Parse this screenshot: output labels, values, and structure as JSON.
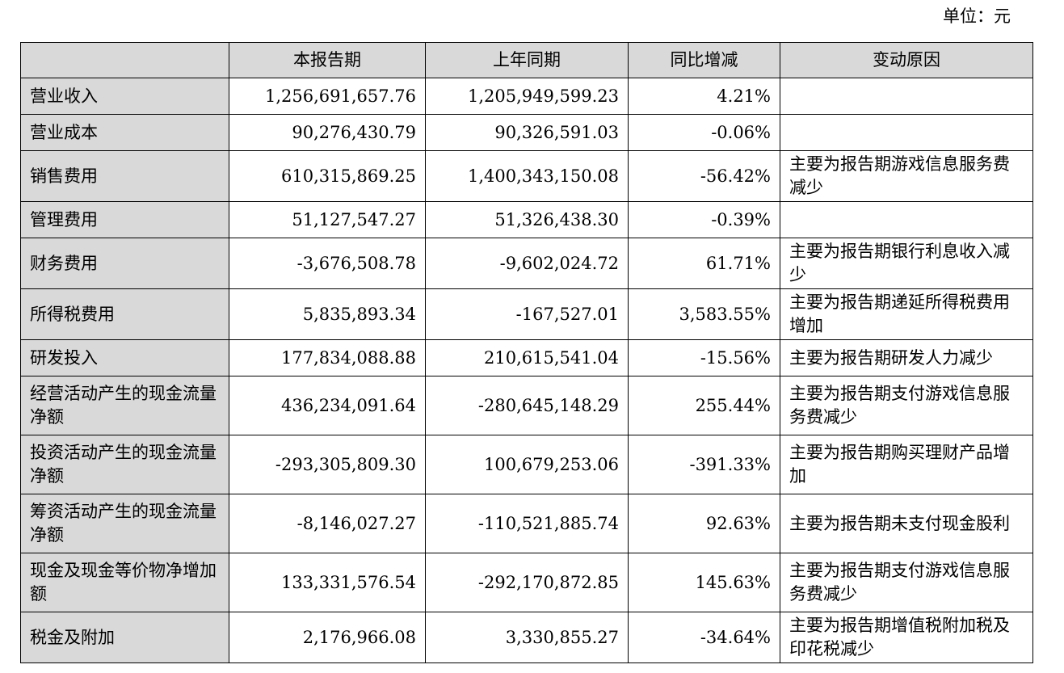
{
  "unit_label": "单位：元",
  "headers": [
    "",
    "本报告期",
    "上年同期",
    "同比增减",
    "变动原因"
  ],
  "rows": [
    {
      "item": "营业收入",
      "current": "1,256,691,657.76",
      "prior": "1,205,949,599.23",
      "change": "4.21%",
      "reason": ""
    },
    {
      "item": "营业成本",
      "current": "90,276,430.79",
      "prior": "90,326,591.03",
      "change": "-0.06%",
      "reason": ""
    },
    {
      "item": "销售费用",
      "current": "610,315,869.25",
      "prior": "1,400,343,150.08",
      "change": "-56.42%",
      "reason": "主要为报告期游戏信息服务费减少"
    },
    {
      "item": "管理费用",
      "current": "51,127,547.27",
      "prior": "51,326,438.30",
      "change": "-0.39%",
      "reason": ""
    },
    {
      "item": "财务费用",
      "current": "-3,676,508.78",
      "prior": "-9,602,024.72",
      "change": "61.71%",
      "reason": "主要为报告期银行利息收入减少"
    },
    {
      "item": "所得税费用",
      "current": "5,835,893.34",
      "prior": "-167,527.01",
      "change": "3,583.55%",
      "reason": "主要为报告期递延所得税费用增加"
    },
    {
      "item": "研发投入",
      "current": "177,834,088.88",
      "prior": "210,615,541.04",
      "change": "-15.56%",
      "reason": "主要为报告期研发人力减少"
    },
    {
      "item": "经营活动产生的现金流量净额",
      "current": "436,234,091.64",
      "prior": "-280,645,148.29",
      "change": "255.44%",
      "reason": "主要为报告期支付游戏信息服务费减少"
    },
    {
      "item": "投资活动产生的现金流量净额",
      "current": "-293,305,809.30",
      "prior": "100,679,253.06",
      "change": "-391.33%",
      "reason": "主要为报告期购买理财产品增加"
    },
    {
      "item": "筹资活动产生的现金流量净额",
      "current": "-8,146,027.27",
      "prior": "-110,521,885.74",
      "change": "92.63%",
      "reason": "主要为报告期未支付现金股利"
    },
    {
      "item": "现金及现金等价物净增加额",
      "current": "133,331,576.54",
      "prior": "-292,170,872.85",
      "change": "145.63%",
      "reason": "主要为报告期支付游戏信息服务费减少"
    },
    {
      "item": "税金及附加",
      "current": "2,176,966.08",
      "prior": "3,330,855.27",
      "change": "-34.64%",
      "reason": "主要为报告期增值税附加税及印花税减少"
    }
  ],
  "colors": {
    "header_bg": "#d9d9d9",
    "item_bg": "#d9d9d9",
    "border": "#000000",
    "text": "#000000"
  }
}
